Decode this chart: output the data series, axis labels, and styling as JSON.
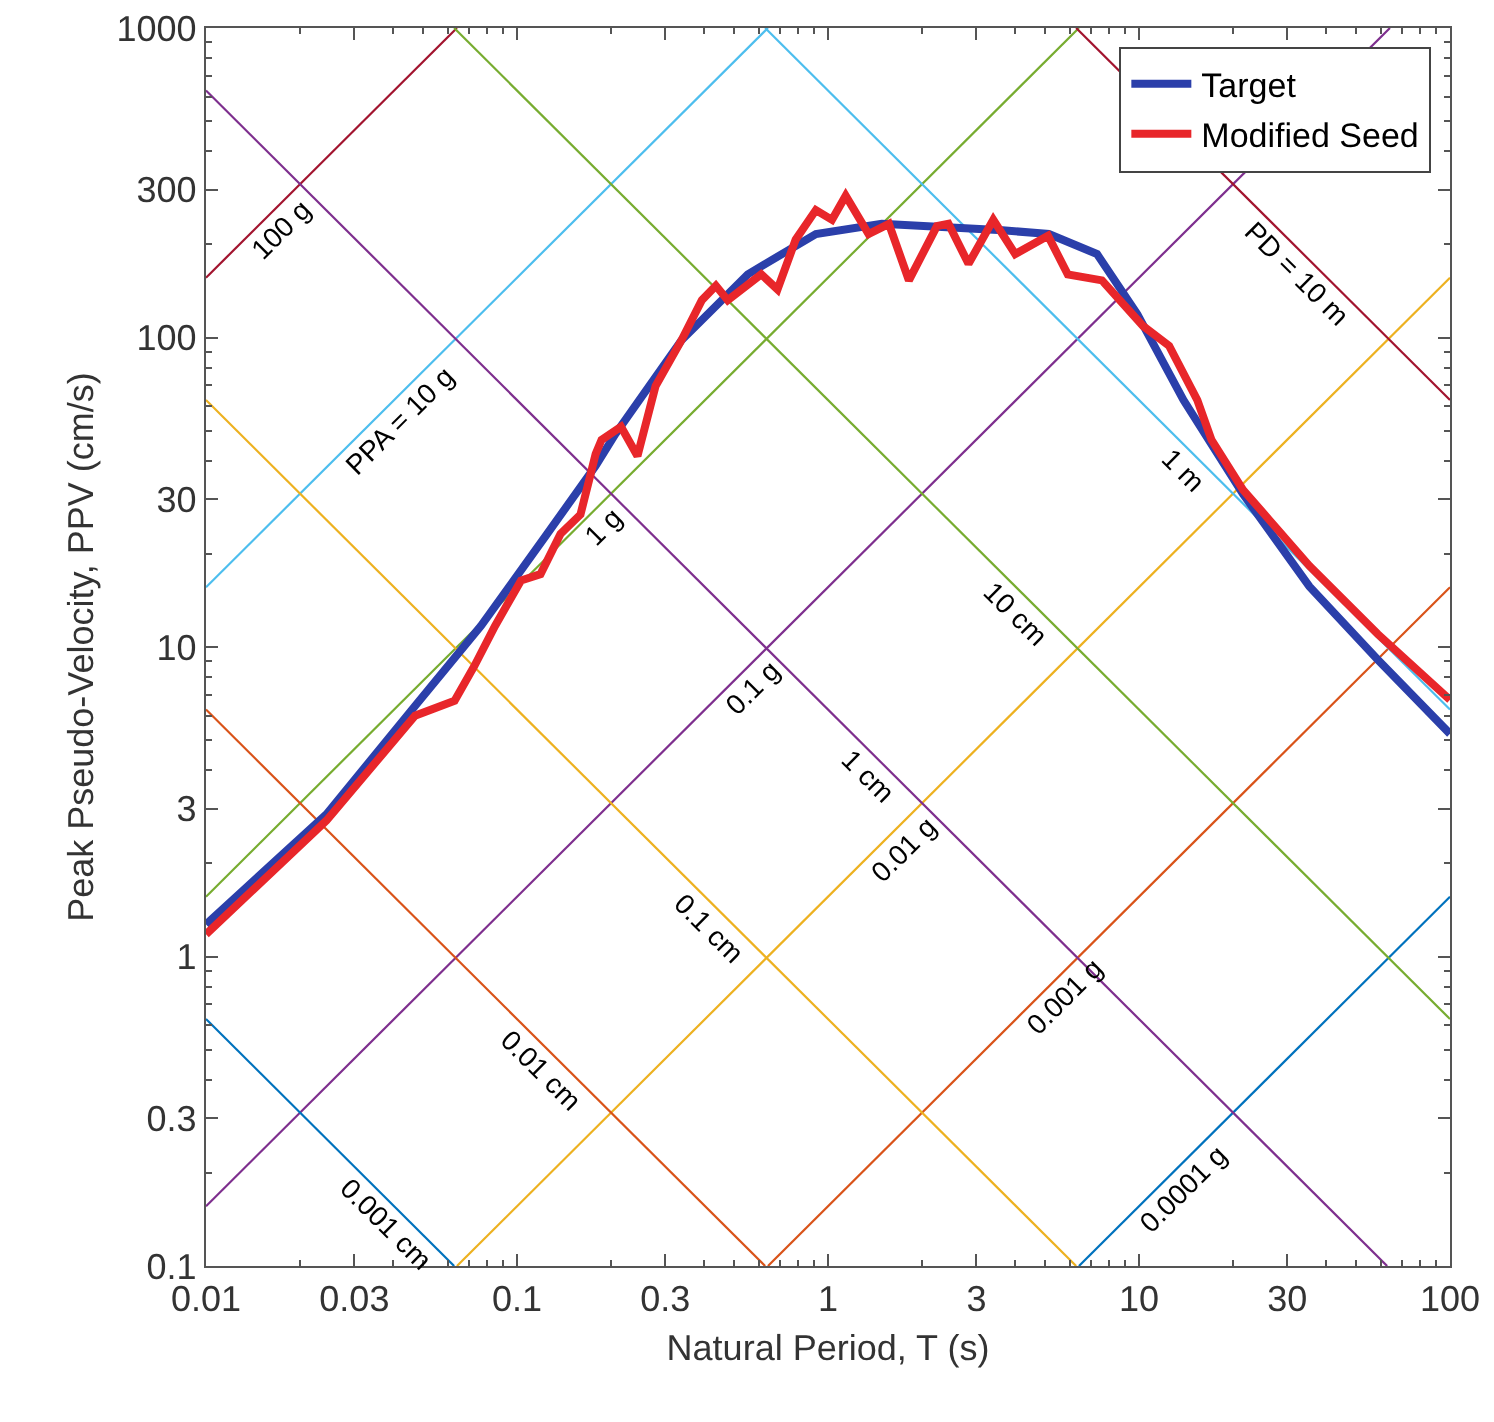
{
  "chart_data": {
    "type": "line",
    "xlabel": "Natural Period, T (s)",
    "ylabel": "Peak Pseudo-Velocity, PPV (cm/s)",
    "log": "xy",
    "legend": "top right",
    "xlim": [
      0.01,
      100
    ],
    "ylim": [
      0.1,
      1000
    ],
    "xticks": [
      0.01,
      0.03,
      0.1,
      0.3,
      1,
      3,
      10,
      30,
      100
    ],
    "yticks": [
      0.1,
      0.3,
      1,
      3,
      10,
      30,
      100,
      300,
      1000
    ],
    "series": [
      {
        "color": "#0072bd",
        "x": [
          6.41,
          100
        ],
        "values": [
          0.1,
          1.56
        ]
      },
      {
        "color": "#d95319",
        "x": [
          0.641,
          100
        ],
        "values": [
          0.1,
          15.6
        ]
      },
      {
        "color": "#edb120",
        "x": [
          0.0641,
          100
        ],
        "values": [
          0.1,
          156
        ]
      },
      {
        "color": "#7e2f8e",
        "x": [
          0.01,
          64.1
        ],
        "values": [
          0.156,
          1000
        ]
      },
      {
        "color": "#77ac30",
        "x": [
          0.01,
          6.41
        ],
        "values": [
          1.56,
          1000
        ]
      },
      {
        "color": "#4dbeee",
        "x": [
          0.01,
          0.641
        ],
        "values": [
          15.6,
          1000
        ]
      },
      {
        "color": "#a2142f",
        "x": [
          0.01,
          0.0641
        ],
        "values": [
          156,
          1000
        ]
      },
      {
        "color": "#0072bd",
        "x": [
          0.01,
          0.0628
        ],
        "values": [
          0.628,
          0.1
        ]
      },
      {
        "color": "#d95319",
        "x": [
          0.01,
          0.628
        ],
        "values": [
          6.28,
          0.1
        ]
      },
      {
        "color": "#edb120",
        "x": [
          0.01,
          6.28
        ],
        "values": [
          62.8,
          0.1
        ]
      },
      {
        "color": "#7e2f8e",
        "x": [
          0.01,
          62.8
        ],
        "values": [
          628,
          0.1
        ]
      },
      {
        "color": "#77ac30",
        "x": [
          0.0628,
          100
        ],
        "values": [
          1000,
          0.628
        ]
      },
      {
        "color": "#4dbeee",
        "x": [
          0.628,
          100
        ],
        "values": [
          1000,
          6.28
        ]
      },
      {
        "color": "#a2142f",
        "x": [
          6.28,
          100
        ],
        "values": [
          1000,
          62.8
        ]
      },
      {
        "name": "Target",
        "color": "#2b3faa",
        "x": [
          0.01,
          0.0244,
          0.047,
          0.0766,
          0.125,
          0.179,
          0.207,
          0.338,
          0.552,
          0.914,
          1.49,
          3.64,
          5.13,
          7.33,
          9.87,
          13.9,
          21.6,
          35.3,
          58.6,
          100
        ],
        "values": [
          1.27,
          2.88,
          6.45,
          11.7,
          23.2,
          38.5,
          48.7,
          98,
          160,
          216,
          233,
          222,
          216,
          186,
          119,
          62.8,
          31.2,
          15.7,
          9.1,
          5.24
        ]
      },
      {
        "name": "Modified Seed",
        "color": "#e8262a",
        "x": [
          0.01,
          0.0244,
          0.047,
          0.063,
          0.073,
          0.085,
          0.103,
          0.119,
          0.138,
          0.16,
          0.179,
          0.187,
          0.216,
          0.244,
          0.279,
          0.338,
          0.393,
          0.436,
          0.476,
          0.61,
          0.688,
          0.787,
          0.914,
          1.03,
          1.14,
          1.35,
          1.57,
          1.82,
          2.24,
          2.44,
          2.83,
          3.4,
          4.0,
          5.1,
          5.9,
          7.6,
          10.3,
          12.5,
          15.4,
          17.1,
          21.6,
          35.3,
          58.6,
          100
        ],
        "values": [
          1.18,
          2.75,
          6.0,
          6.7,
          8.7,
          11.7,
          16.4,
          17.2,
          23.2,
          26.8,
          42,
          46.7,
          51.5,
          41.4,
          69.7,
          98,
          132,
          147,
          132,
          160,
          143,
          207,
          258,
          240,
          287,
          216,
          233,
          153,
          229,
          233,
          173,
          240,
          186,
          213,
          160,
          153,
          109,
          94,
          62.8,
          46.7,
          32.2,
          18.3,
          11.0,
          6.75
        ]
      }
    ],
    "annotations": [
      {
        "text": "100 g",
        "x": 0.0173,
        "y": 270
      },
      {
        "text": "PPA = 10 g",
        "x": 0.042,
        "y": 65.6
      },
      {
        "text": "1 g",
        "x": 0.19,
        "y": 29.7
      },
      {
        "text": "0.1 g",
        "x": 0.57,
        "y": 8.9
      },
      {
        "text": "0.01 g",
        "x": 1.73,
        "y": 2.7
      },
      {
        "text": "0.001 g",
        "x": 5.77,
        "y": 0.9
      },
      {
        "text": "0.0001 g",
        "x": 13.9,
        "y": 0.217
      },
      {
        "text": "0.001 cm",
        "x": 0.038,
        "y": 0.165
      },
      {
        "text": "0.01 cm",
        "x": 0.12,
        "y": 0.524
      },
      {
        "text": "0.1 cm",
        "x": 0.416,
        "y": 1.51
      },
      {
        "text": "1 cm",
        "x": 1.35,
        "y": 4.65
      },
      {
        "text": "10 cm",
        "x": 4.04,
        "y": 15.6
      },
      {
        "text": "1 m",
        "x": 13.9,
        "y": 45.2
      },
      {
        "text": "PD = 10 m",
        "x": 32.4,
        "y": 194
      }
    ]
  }
}
